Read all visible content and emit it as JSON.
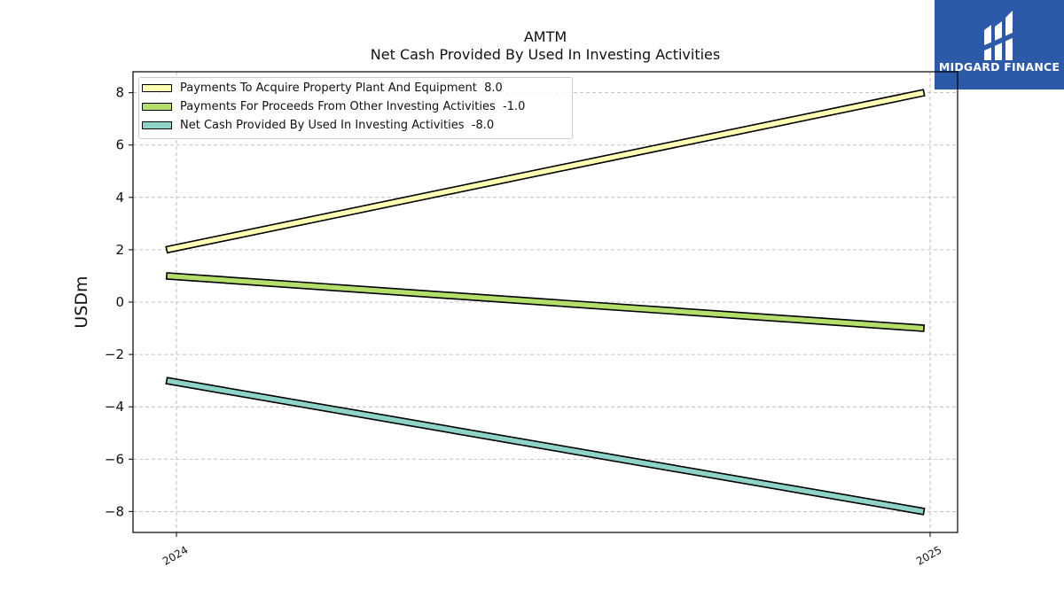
{
  "chart_data": {
    "type": "line",
    "title": "AMTM",
    "subtitle": "Net Cash Provided By Used In Investing Activities",
    "xlabel": "",
    "ylabel": "USDm",
    "x": [
      "2024",
      "2025"
    ],
    "ylim": [
      -8.8,
      8.8
    ],
    "yticks": [
      -8,
      -6,
      -4,
      -2,
      0,
      2,
      4,
      6,
      8
    ],
    "ytick_labels": [
      "−8",
      "−6",
      "−4",
      "−2",
      "0",
      "2",
      "4",
      "6",
      "8"
    ],
    "grid": true,
    "legend_position": "top-left",
    "series": [
      {
        "name": "Payments To Acquire Property Plant And Equipment",
        "legend_value": "8.0",
        "values": [
          2.0,
          8.0
        ],
        "color": "#ffffb3"
      },
      {
        "name": "Payments For Proceeds From Other Investing Activities",
        "legend_value": "-1.0",
        "values": [
          1.0,
          -1.0
        ],
        "color": "#b3de69"
      },
      {
        "name": "Net Cash Provided By Used In Investing Activities",
        "legend_value": "-8.0",
        "values": [
          -3.0,
          -8.0
        ],
        "color": "#8dd3c7"
      }
    ]
  },
  "logo": {
    "text": "MIDGARD FINANCE",
    "color": "#2c5aa8"
  }
}
